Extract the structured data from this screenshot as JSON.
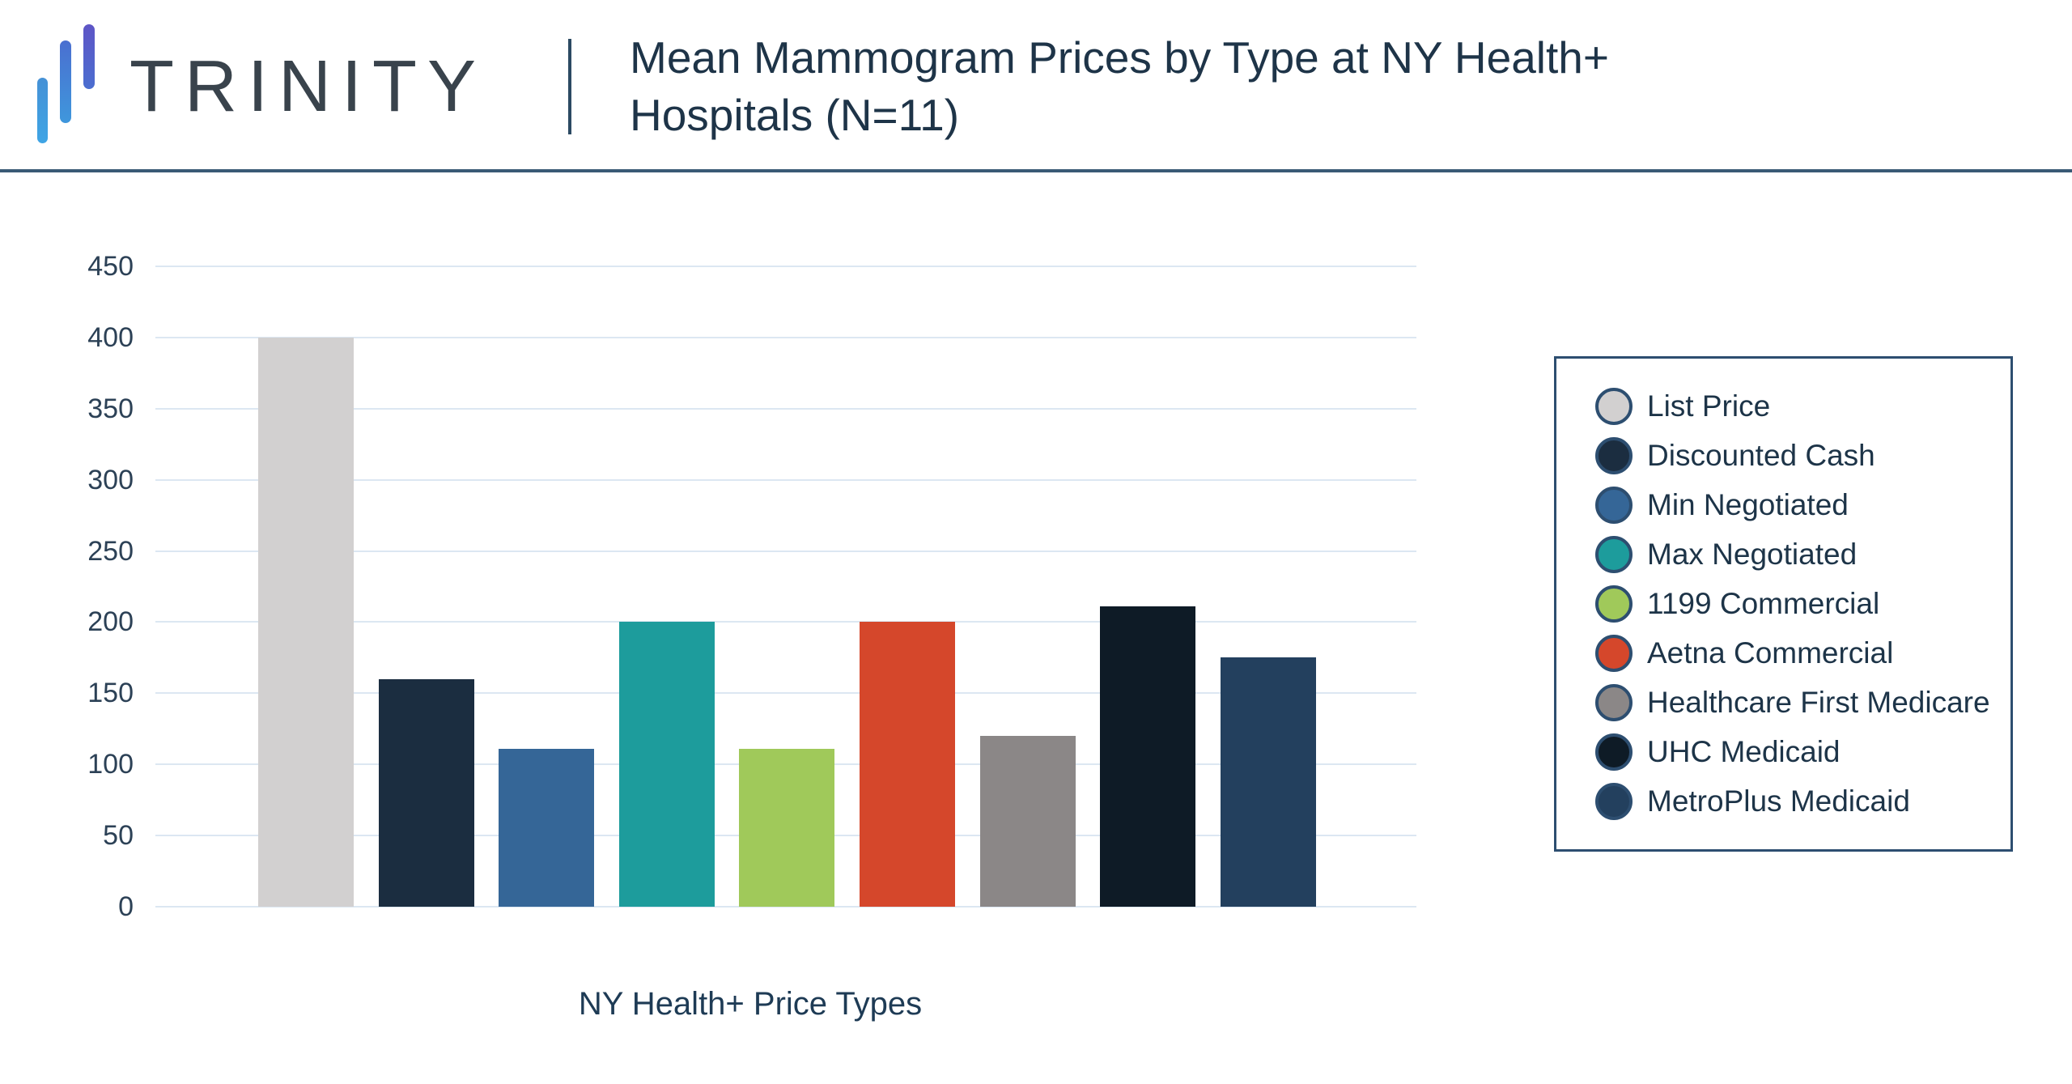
{
  "header": {
    "brand": "TRINITY",
    "logo_bar_colors": [
      "#3fa5e5",
      "#4a6fd0",
      "#5e55c6"
    ],
    "divider_color": "#2c4a63",
    "border_color": "#3a5a75"
  },
  "chart_data": {
    "type": "bar",
    "title": "Mean Mammogram Prices by Type at NY Health+ Hospitals (N=11)",
    "xlabel": "NY Health+ Price Types",
    "ylabel": "",
    "ylim": [
      0,
      450
    ],
    "yticks": [
      0,
      50,
      100,
      150,
      200,
      250,
      300,
      350,
      400,
      450
    ],
    "grid": true,
    "legend_position": "right",
    "categories": [
      "List Price",
      "Discounted Cash",
      "Min Negotiated",
      "Max Negotiated",
      "1199 Commercial",
      "Aetna Commercial",
      "Healthcare First Medicare",
      "UHC Medicaid",
      "MetroPlus Medicaid"
    ],
    "values": [
      400,
      160,
      111,
      200,
      111,
      200,
      120,
      211,
      175
    ],
    "colors": [
      "#d2d0d0",
      "#1b2d40",
      "#356697",
      "#1d9c9c",
      "#a0c95a",
      "#d5472b",
      "#8b8787",
      "#0e1b26",
      "#23405e"
    ],
    "grid_color": "#dce7f2",
    "tick_color": "#2c4156",
    "title_color": "#1e3448",
    "legend_border_color": "#2d4e70"
  }
}
